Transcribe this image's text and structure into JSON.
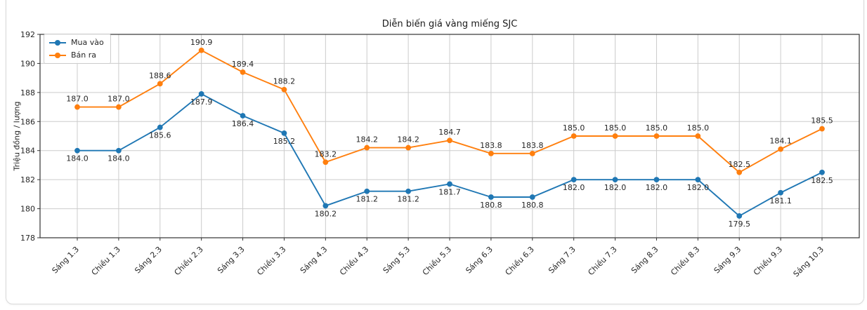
{
  "chart_data": {
    "type": "line",
    "title": "Diễn biến giá vàng miếng SJC",
    "ylabel": "Triệu đồng / lượng",
    "xlabel": "",
    "categories": [
      "Sáng 1.3",
      "Chiều 1.3",
      "Sáng 2.3",
      "Chiều 2.3",
      "Sáng 3.3",
      "Chiều 3.3",
      "Sáng 4.3",
      "Chiều 4.3",
      "Sáng 5.3",
      "Chiều 5.3",
      "Sáng 6.3",
      "Chiều 6.3",
      "Sáng 7.3",
      "Chiều 7.3",
      "Sáng 8.3",
      "Chiều 8.3",
      "Sáng 9.3",
      "Chiều 9.3",
      "Sáng 10.3"
    ],
    "series": [
      {
        "name": "Mua vào",
        "color": "#1f77b4",
        "label_position": "below",
        "values": [
          184.0,
          184.0,
          185.6,
          187.9,
          186.4,
          185.2,
          180.2,
          181.2,
          181.2,
          181.7,
          180.8,
          180.8,
          182.0,
          182.0,
          182.0,
          182.0,
          179.5,
          181.1,
          182.5
        ]
      },
      {
        "name": "Bán ra",
        "color": "#ff7f0e",
        "label_position": "above",
        "values": [
          187.0,
          187.0,
          188.6,
          190.9,
          189.4,
          188.2,
          183.2,
          184.2,
          184.2,
          184.7,
          183.8,
          183.8,
          185.0,
          185.0,
          185.0,
          185.0,
          182.5,
          184.1,
          185.5
        ]
      }
    ],
    "ylim": [
      178,
      192
    ],
    "yticks": [
      178,
      180,
      182,
      184,
      186,
      188,
      190,
      192
    ],
    "grid": true,
    "legend_position": "upper-left",
    "value_decimals": 1,
    "colors": {
      "grid": "#cccccc",
      "frame": "#333333",
      "text": "#262626"
    }
  }
}
